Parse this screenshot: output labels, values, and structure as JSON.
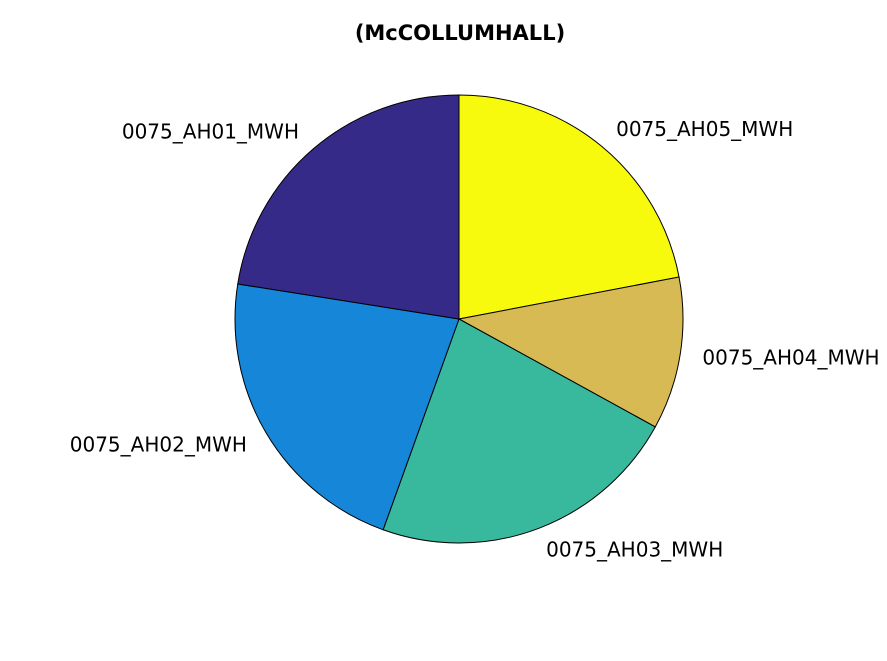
{
  "chart_data": {
    "type": "pie",
    "title": "(McCOLLUMHALL)",
    "start": "top",
    "direction": "clockwise",
    "labels": [
      "0075_AH05_MWH",
      "0075_AH04_MWH",
      "0075_AH03_MWH",
      "0075_AH02_MWH",
      "0075_AH01_MWH"
    ],
    "values": [
      22.0,
      11.0,
      22.5,
      22.0,
      22.5
    ],
    "colors": [
      "#F8FA0D",
      "#D8BA55",
      "#38B99E",
      "#1686D9",
      "#352A87"
    ]
  }
}
